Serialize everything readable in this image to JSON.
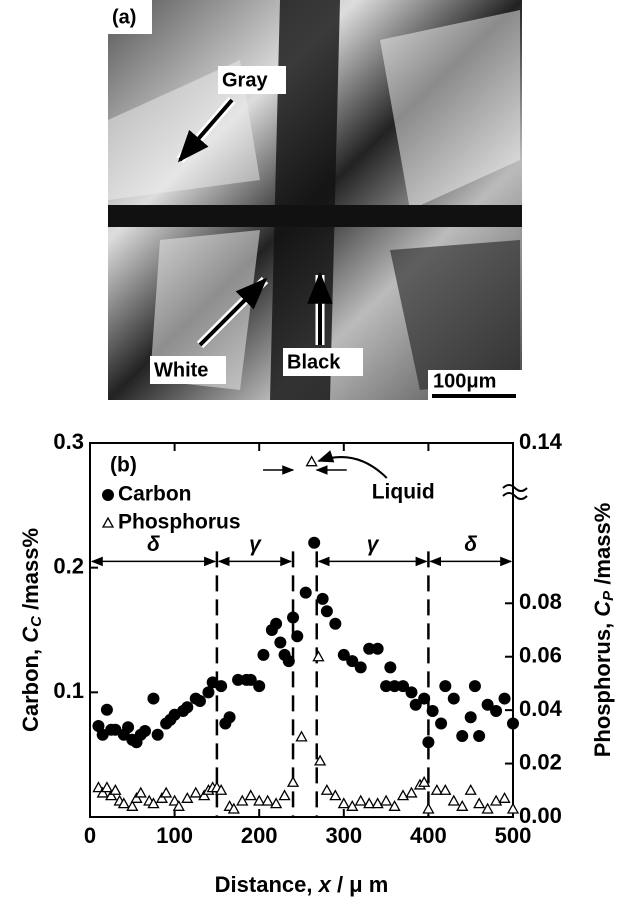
{
  "figure_a": {
    "panel_label": "(a)",
    "labels": {
      "gray": "Gray",
      "white": "White",
      "black": "Black"
    },
    "scale_bar": "100μm"
  },
  "chart_data": {
    "type": "scatter",
    "panel_label": "(b)",
    "xlabel": {
      "text": "Distance, ",
      "var": "x",
      "unit": " / μ m"
    },
    "ylabel": {
      "text": "Carbon, ",
      "var": "C",
      "sub": "C",
      "unit": " /mass%"
    },
    "y2label": {
      "text": "Phosphorus, ",
      "var": "C",
      "sub": "P",
      "unit": " /mass%"
    },
    "xlim": [
      0,
      500
    ],
    "xticks": [
      0,
      100,
      200,
      300,
      400,
      500
    ],
    "ylim": [
      0,
      0.3
    ],
    "yticks": [
      0.1,
      0.2,
      0.3
    ],
    "y2lim": [
      0,
      0.14
    ],
    "y2ticks": [
      {
        "value": 0,
        "label": "0.00"
      },
      0.02,
      0.04,
      0.06,
      0.08,
      0.14
    ],
    "phase_boundaries": [
      150,
      240,
      268,
      400
    ],
    "phases": [
      "δ",
      "γ",
      "γ",
      "δ"
    ],
    "liquid_label": "Liquid",
    "series": [
      {
        "name": "Carbon",
        "marker": "circle",
        "color": "#000000",
        "x": [
          10,
          15,
          20,
          25,
          30,
          40,
          45,
          50,
          55,
          60,
          65,
          75,
          80,
          90,
          95,
          100,
          110,
          115,
          125,
          130,
          140,
          145,
          155,
          160,
          165,
          175,
          185,
          190,
          200,
          205,
          215,
          220,
          225,
          230,
          235,
          240,
          245,
          255,
          265,
          275,
          280,
          290,
          300,
          310,
          320,
          330,
          340,
          350,
          355,
          360,
          370,
          380,
          385,
          395,
          400,
          405,
          415,
          420,
          430,
          440,
          450,
          455,
          460,
          470,
          480,
          490,
          500
        ],
        "values": [
          0.073,
          0.066,
          0.086,
          0.07,
          0.07,
          0.066,
          0.072,
          0.062,
          0.06,
          0.066,
          0.069,
          0.095,
          0.066,
          0.075,
          0.078,
          0.082,
          0.085,
          0.088,
          0.095,
          0.093,
          0.1,
          0.108,
          0.105,
          0.075,
          0.08,
          0.11,
          0.11,
          0.11,
          0.105,
          0.13,
          0.15,
          0.155,
          0.14,
          0.13,
          0.125,
          0.16,
          0.145,
          0.18,
          0.22,
          0.175,
          0.165,
          0.155,
          0.13,
          0.125,
          0.12,
          0.135,
          0.135,
          0.105,
          0.12,
          0.105,
          0.105,
          0.1,
          0.09,
          0.095,
          0.06,
          0.085,
          0.075,
          0.105,
          0.095,
          0.065,
          0.08,
          0.105,
          0.065,
          0.09,
          0.085,
          0.095,
          0.075
        ]
      },
      {
        "name": "Phosphorus",
        "marker": "triangle",
        "color": "#000000",
        "axis": "y2",
        "x": [
          10,
          15,
          20,
          25,
          30,
          35,
          40,
          50,
          55,
          60,
          70,
          75,
          85,
          90,
          100,
          105,
          115,
          125,
          135,
          140,
          145,
          150,
          155,
          165,
          170,
          180,
          190,
          200,
          210,
          220,
          230,
          240,
          250,
          262,
          270,
          272,
          280,
          290,
          300,
          310,
          320,
          330,
          340,
          350,
          360,
          370,
          380,
          390,
          395,
          400,
          410,
          420,
          430,
          440,
          450,
          460,
          470,
          480,
          490,
          500
        ],
        "values": [
          0.011,
          0.009,
          0.011,
          0.008,
          0.01,
          0.006,
          0.005,
          0.004,
          0.007,
          0.009,
          0.006,
          0.005,
          0.007,
          0.009,
          0.006,
          0.004,
          0.007,
          0.009,
          0.008,
          0.01,
          0.011,
          0.011,
          0.01,
          0.004,
          0.003,
          0.006,
          0.008,
          0.006,
          0.006,
          0.005,
          0.008,
          0.013,
          0.03,
          0.133,
          0.06,
          0.021,
          0.01,
          0.008,
          0.005,
          0.004,
          0.006,
          0.005,
          0.005,
          0.006,
          0.004,
          0.008,
          0.009,
          0.012,
          0.013,
          0.003,
          0.01,
          0.01,
          0.006,
          0.004,
          0.01,
          0.005,
          0.003,
          0.006,
          0.007,
          0.003
        ]
      }
    ]
  }
}
